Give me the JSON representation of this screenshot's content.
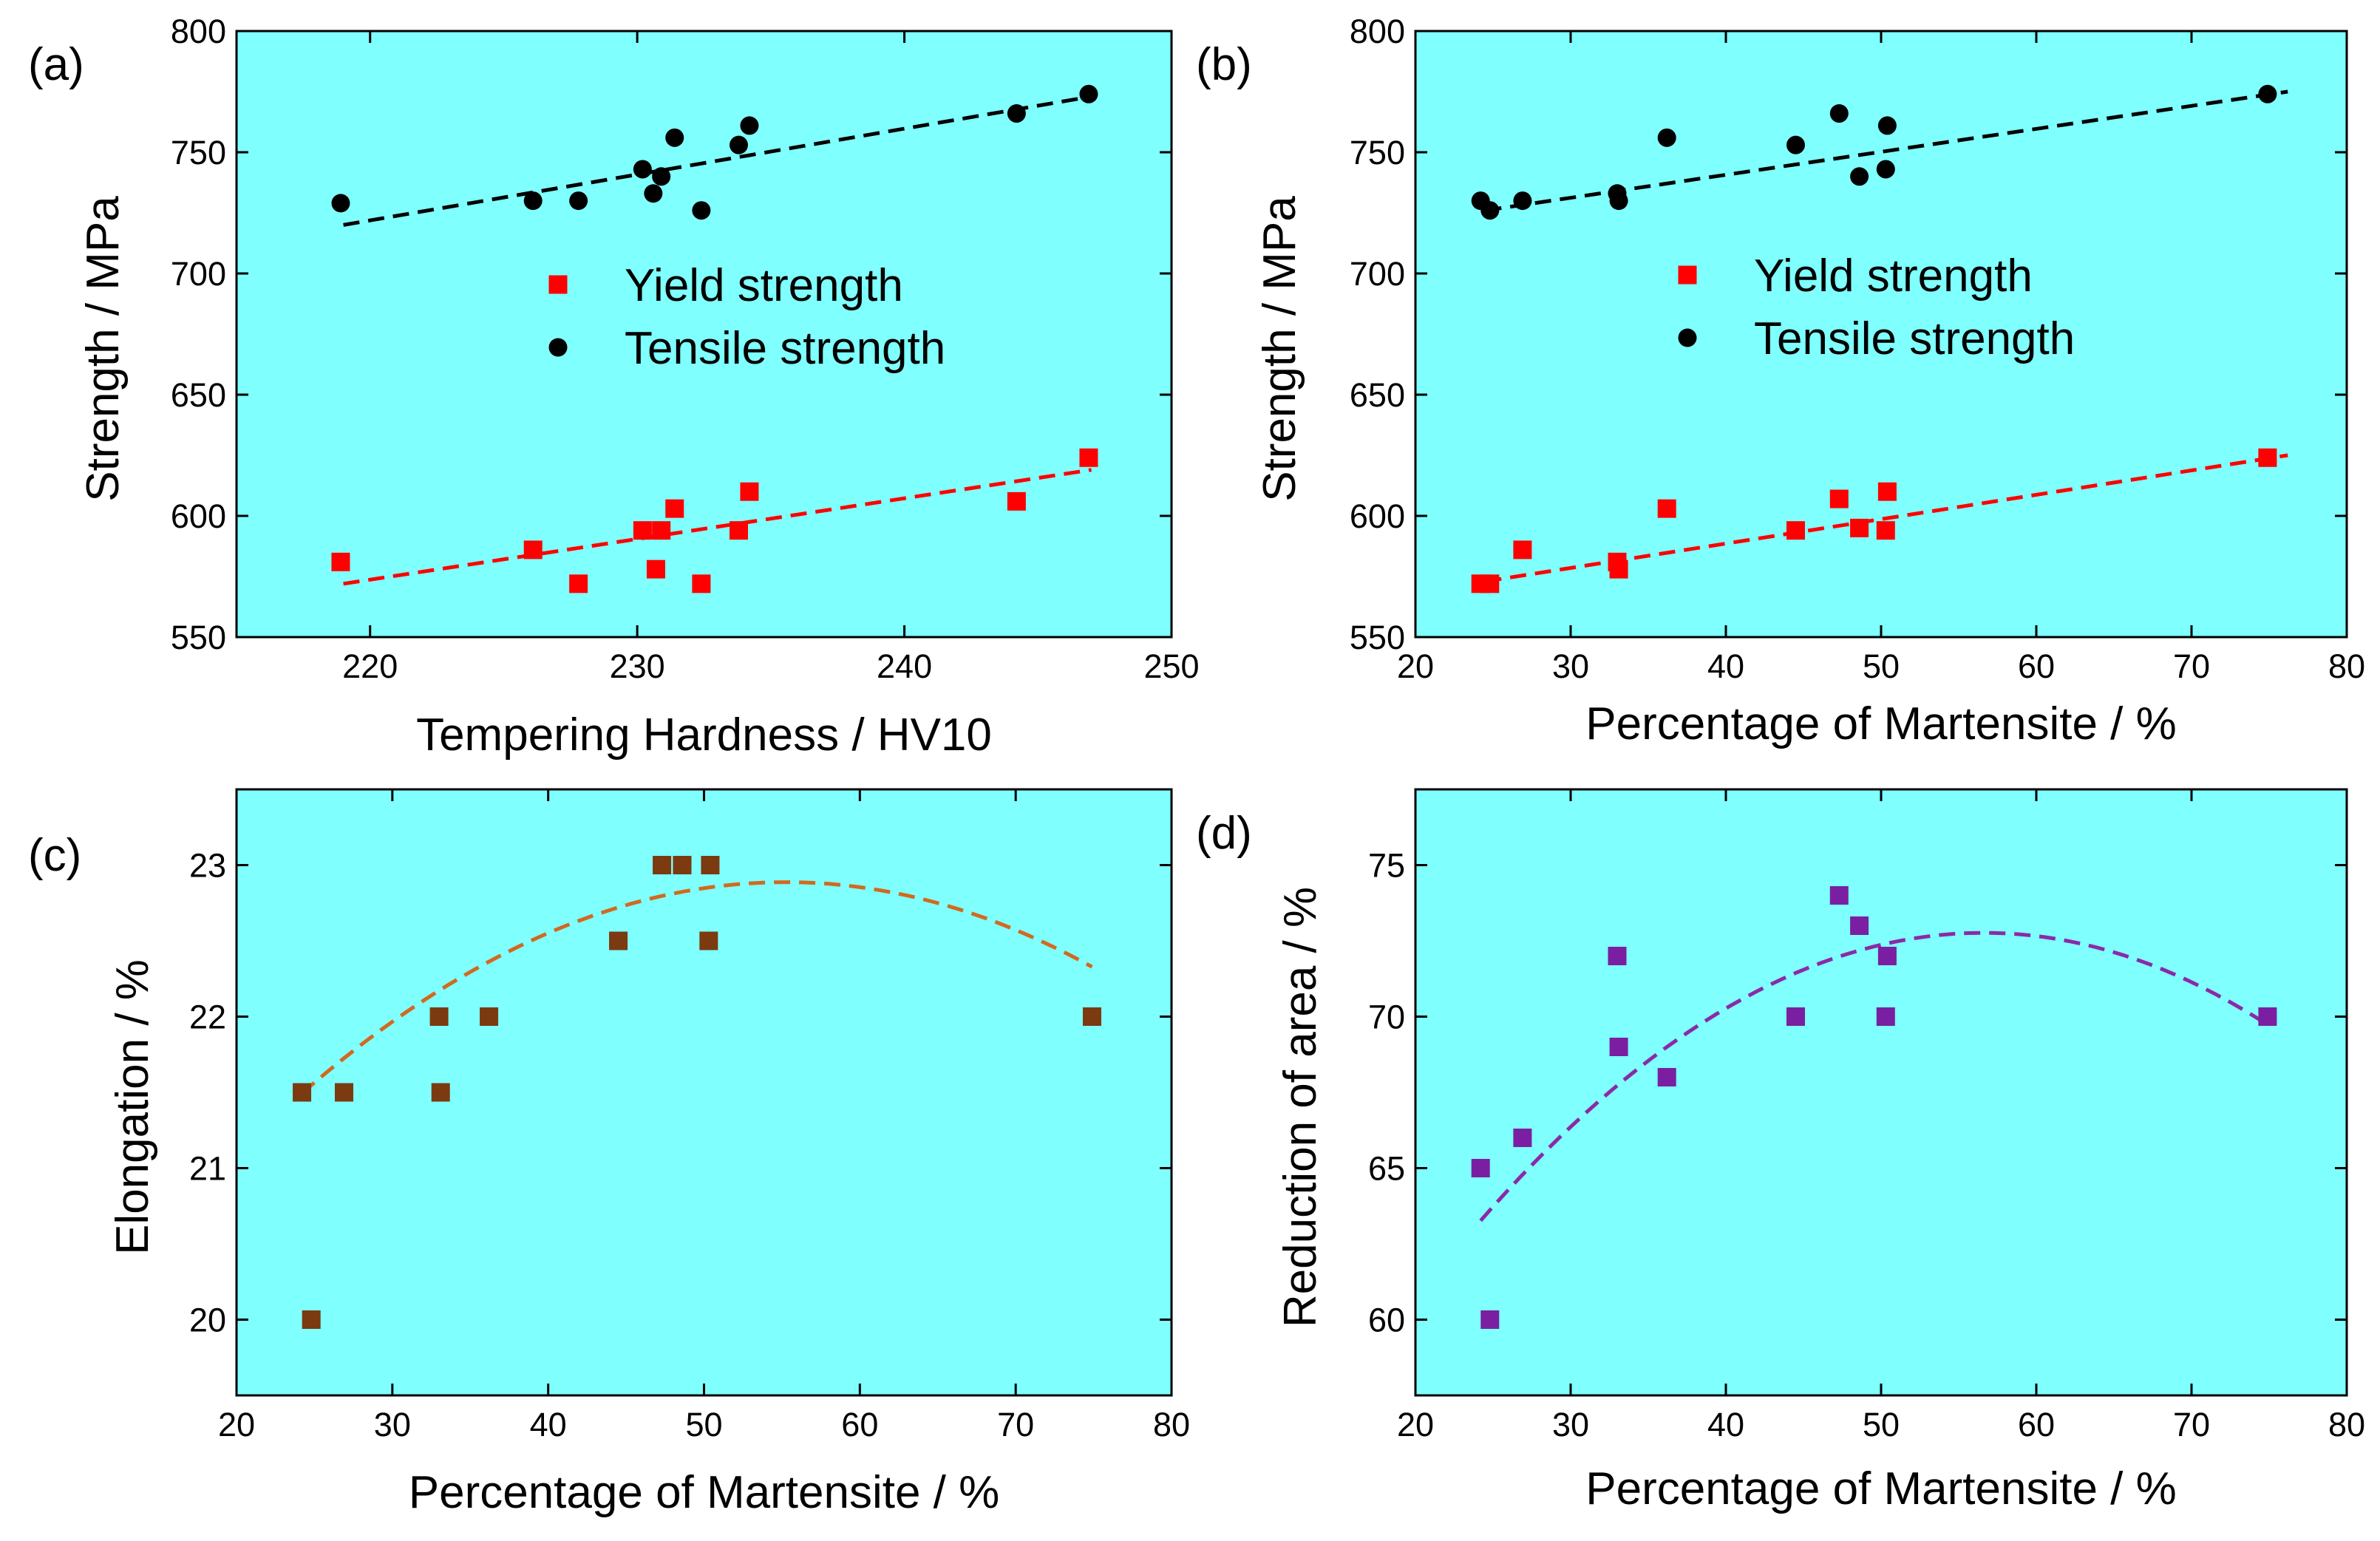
{
  "figure": {
    "colors": {
      "plot_background": "#7ffffe",
      "yield": "#ff0000",
      "tensile": "#000000",
      "elongation": "#7b3a10",
      "elongation_fit": "#d2691e",
      "reduction": "#7a1fa2",
      "reduction_fit": "#8a2aa8"
    }
  },
  "chart_data": [
    {
      "panel": "(a)",
      "type": "scatter",
      "xlabel": "Tempering Hardness / HV10",
      "ylabel": "Strength / MPa",
      "xlim": [
        215,
        250
      ],
      "ylim": [
        550,
        800
      ],
      "xticks": [
        220,
        230,
        240,
        250
      ],
      "yticks": [
        550,
        600,
        650,
        700,
        750,
        800
      ],
      "legend": {
        "position": "center",
        "entries": [
          "Yield strength",
          "Tensile strength"
        ]
      },
      "series": [
        {
          "name": "Yield strength",
          "marker": "square",
          "color": "#ff0000",
          "points": [
            [
              218.9,
              581
            ],
            [
              226.1,
              586
            ],
            [
              227.8,
              572
            ],
            [
              230.2,
              594
            ],
            [
              230.7,
              578
            ],
            [
              230.9,
              594
            ],
            [
              231.4,
              603
            ],
            [
              232.4,
              572
            ],
            [
              233.8,
              594
            ],
            [
              234.2,
              610
            ],
            [
              244.2,
              606
            ],
            [
              246.9,
              624
            ]
          ],
          "fit": {
            "type": "linear",
            "points": [
              [
                219,
                572
              ],
              [
                247,
                619
              ]
            ]
          }
        },
        {
          "name": "Tensile strength",
          "marker": "circle",
          "color": "#000000",
          "points": [
            [
              218.9,
              729
            ],
            [
              226.1,
              730
            ],
            [
              227.8,
              730
            ],
            [
              230.2,
              743
            ],
            [
              230.6,
              733
            ],
            [
              230.9,
              740
            ],
            [
              231.4,
              756
            ],
            [
              232.4,
              726
            ],
            [
              233.8,
              753
            ],
            [
              234.2,
              761
            ],
            [
              244.2,
              766
            ],
            [
              246.9,
              774
            ]
          ],
          "fit": {
            "type": "linear",
            "points": [
              [
                219,
                720
              ],
              [
                247,
                773
              ]
            ]
          }
        }
      ]
    },
    {
      "panel": "(b)",
      "type": "scatter",
      "xlabel": "Percentage of Martensite / %",
      "ylabel": "Strength / MPa",
      "xlim": [
        20,
        80
      ],
      "ylim": [
        550,
        800
      ],
      "xticks": [
        20,
        30,
        40,
        50,
        60,
        70,
        80
      ],
      "yticks": [
        550,
        600,
        650,
        700,
        750,
        800
      ],
      "legend": {
        "position": "center",
        "entries": [
          "Yield strength",
          "Tensile strength"
        ]
      },
      "series": [
        {
          "name": "Yield strength",
          "marker": "square",
          "color": "#ff0000",
          "points": [
            [
              24.2,
              572
            ],
            [
              24.8,
              572
            ],
            [
              26.9,
              586
            ],
            [
              33.0,
              581
            ],
            [
              33.1,
              578
            ],
            [
              36.2,
              603
            ],
            [
              44.5,
              594
            ],
            [
              47.3,
              607
            ],
            [
              48.6,
              595
            ],
            [
              50.3,
              594
            ],
            [
              50.4,
              610
            ],
            [
              74.9,
              624
            ]
          ],
          "fit": {
            "type": "linear",
            "points": [
              [
                24.5,
                573
              ],
              [
                76.2,
                625
              ]
            ]
          }
        },
        {
          "name": "Tensile strength",
          "marker": "circle",
          "color": "#000000",
          "points": [
            [
              24.2,
              730
            ],
            [
              24.8,
              726
            ],
            [
              26.9,
              730
            ],
            [
              33.0,
              733
            ],
            [
              33.1,
              730
            ],
            [
              36.2,
              756
            ],
            [
              44.5,
              753
            ],
            [
              47.3,
              766
            ],
            [
              48.6,
              740
            ],
            [
              50.3,
              743
            ],
            [
              50.4,
              761
            ],
            [
              74.9,
              774
            ]
          ],
          "fit": {
            "type": "linear",
            "points": [
              [
                24.5,
                726
              ],
              [
                76.2,
                775
              ]
            ]
          }
        }
      ]
    },
    {
      "panel": "(c)",
      "type": "scatter",
      "xlabel": "Percentage of Martensite / %",
      "ylabel": "Elongation / %",
      "xlim": [
        20,
        80
      ],
      "ylim": [
        19.5,
        23.5
      ],
      "xticks": [
        20,
        30,
        40,
        50,
        60,
        70,
        80
      ],
      "yticks": [
        20,
        21,
        22,
        23
      ],
      "series": [
        {
          "name": "Elongation",
          "marker": "square",
          "color": "#7b3a10",
          "points": [
            [
              24.2,
              21.5
            ],
            [
              24.8,
              20.0
            ],
            [
              26.9,
              21.5
            ],
            [
              33.0,
              22.0
            ],
            [
              33.1,
              21.5
            ],
            [
              36.2,
              22.0
            ],
            [
              44.5,
              22.5
            ],
            [
              47.3,
              23.0
            ],
            [
              48.6,
              23.0
            ],
            [
              50.3,
              22.5
            ],
            [
              50.4,
              23.0
            ],
            [
              74.9,
              22.0
            ]
          ],
          "fit": {
            "type": "quadratic",
            "color": "#d2691e",
            "x_range": [
              24.2,
              74.9
            ],
            "coefficients": [
              -0.0014465,
              0.1598,
              18.474
            ]
          }
        }
      ]
    },
    {
      "panel": "(d)",
      "type": "scatter",
      "xlabel": "Percentage of Martensite / %",
      "ylabel": "Reduction of area / %",
      "xlim": [
        20,
        80
      ],
      "ylim": [
        57.5,
        77.5
      ],
      "xticks": [
        20,
        30,
        40,
        50,
        60,
        70,
        80
      ],
      "yticks": [
        60,
        65,
        70,
        75
      ],
      "series": [
        {
          "name": "Reduction of area",
          "marker": "square",
          "color": "#7a1fa2",
          "points": [
            [
              24.2,
              65
            ],
            [
              24.8,
              60
            ],
            [
              26.9,
              66
            ],
            [
              33.0,
              72
            ],
            [
              33.1,
              69
            ],
            [
              36.2,
              68
            ],
            [
              44.5,
              70
            ],
            [
              47.3,
              74
            ],
            [
              48.6,
              73
            ],
            [
              50.3,
              70
            ],
            [
              50.4,
              72
            ],
            [
              74.9,
              70
            ]
          ],
          "fit": {
            "type": "quadratic",
            "color": "#8a2aa8",
            "x_range": [
              24.2,
              74.9
            ],
            "coefficients": [
              -0.009049,
              1.0243,
              43.778
            ]
          }
        }
      ]
    }
  ]
}
